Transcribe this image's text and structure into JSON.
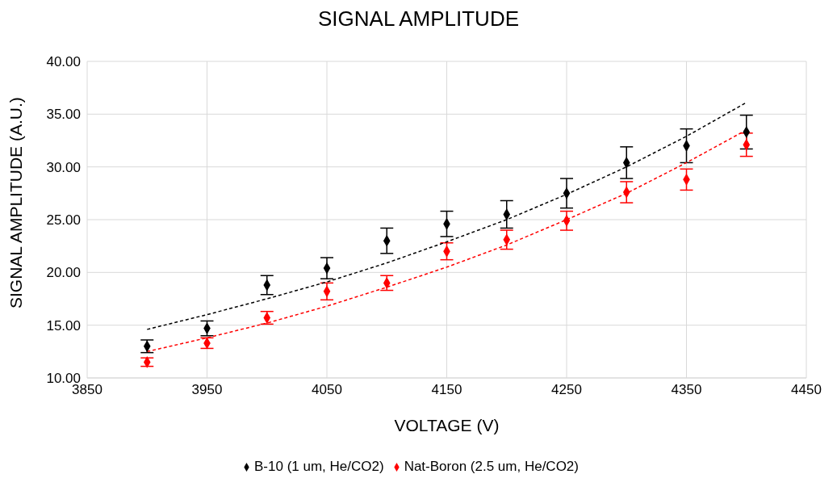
{
  "chart_data": {
    "type": "scatter",
    "title": "SIGNAL AMPLITUDE",
    "xlabel": "VOLTAGE (V)",
    "ylabel": "SIGNAL AMPLITUDE (A.U.)",
    "x": [
      3900,
      3950,
      4000,
      4050,
      4100,
      4150,
      4200,
      4250,
      4300,
      4350,
      4400
    ],
    "series": [
      {
        "name": "B-10 (1 um, He/CO2)",
        "color": "#000000",
        "marker": "diamond",
        "values": [
          13.0,
          14.7,
          18.8,
          20.4,
          23.0,
          24.6,
          25.5,
          27.5,
          30.4,
          32.0,
          33.3
        ],
        "errors": [
          0.6,
          0.7,
          0.9,
          1.0,
          1.2,
          1.2,
          1.3,
          1.4,
          1.5,
          1.6,
          1.6
        ]
      },
      {
        "name": "Nat-Boron (2.5 um, He/CO2)",
        "color": "#ff0000",
        "marker": "diamond",
        "values": [
          11.5,
          13.3,
          15.7,
          18.2,
          19.0,
          22.0,
          23.1,
          24.9,
          27.6,
          28.8,
          32.1
        ],
        "errors": [
          0.4,
          0.5,
          0.6,
          0.8,
          0.7,
          0.8,
          0.9,
          0.9,
          1.0,
          1.0,
          1.1
        ]
      },
      {
        "type": "line",
        "color": "#000000",
        "line_style": "dashed",
        "marker": "none",
        "x": [
          3900,
          3950,
          4000,
          4050,
          4100,
          4150,
          4200,
          4250,
          4300,
          4350,
          4400
        ],
        "values": [
          14.6,
          16.0,
          17.5,
          19.1,
          20.9,
          22.9,
          25.0,
          27.4,
          30.0,
          32.9,
          36.1
        ]
      },
      {
        "type": "line",
        "color": "#ff0000",
        "line_style": "dashed",
        "marker": "none",
        "x": [
          3900,
          3950,
          4000,
          4050,
          4100,
          4150,
          4200,
          4250,
          4300,
          4350,
          4400
        ],
        "values": [
          12.5,
          13.8,
          15.2,
          16.8,
          18.6,
          20.5,
          22.6,
          25.0,
          27.5,
          30.4,
          33.5
        ]
      }
    ],
    "xlim": [
      3850,
      4450
    ],
    "xticks": [
      3850,
      3950,
      4050,
      4150,
      4250,
      4350,
      4450
    ],
    "ylim": [
      10,
      40
    ],
    "yticks": [
      {
        "value": 10,
        "label": "10.00"
      },
      {
        "value": 15,
        "label": "15.00"
      },
      {
        "value": 20,
        "label": "20.00"
      },
      {
        "value": 25,
        "label": "25.00"
      },
      {
        "value": 30,
        "label": "30.00"
      },
      {
        "value": 35,
        "label": "35.00"
      },
      {
        "value": 40,
        "label": "40.00"
      }
    ],
    "grid": true,
    "legend": "bottom"
  }
}
